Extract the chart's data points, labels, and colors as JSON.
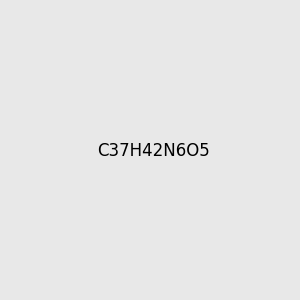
{
  "bg_color": "#e8e8e8",
  "bond_color": "#1a1a1a",
  "N_color": "#0000cc",
  "O_color": "#cc0000",
  "NH_color": "#2f8f8f",
  "lw": 1.5,
  "lw2": 1.2
}
